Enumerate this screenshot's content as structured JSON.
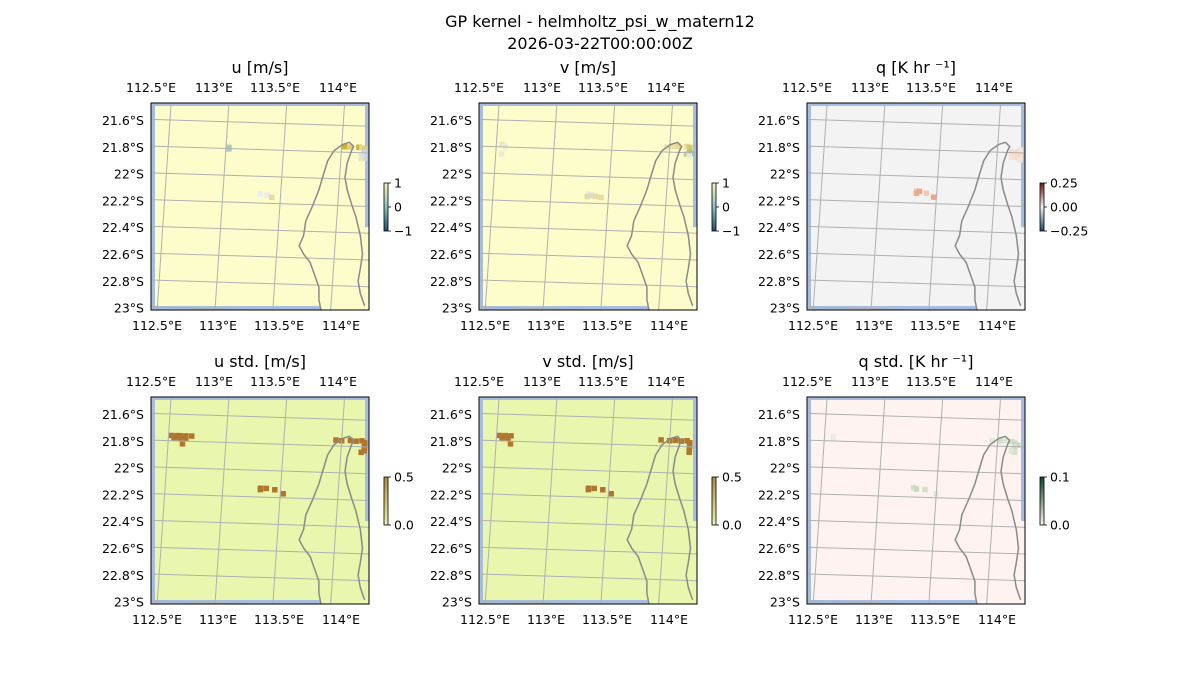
{
  "figure": {
    "title": "GP kernel - helmholtz_psi_w_matern12",
    "subtitle": "2026-03-22T00:00:00Z"
  },
  "colors": {
    "ocean": "#a7bde0",
    "coast": "#8a8a8a",
    "grid": "#b0b0b0"
  },
  "chart_data": [
    {
      "type": "heatmap",
      "title": "u [m/s]",
      "x_ticks": [
        "112.5°E",
        "113°E",
        "113.5°E",
        "114°E"
      ],
      "y_ticks": [
        "21.6°S",
        "21.8°S",
        "22°S",
        "22.2°S",
        "22.4°S",
        "22.6°S",
        "22.8°S",
        "23°S"
      ],
      "background": "#fdfccb",
      "grid": true,
      "colorbar": {
        "ticks": [
          "1",
          "0",
          "−1"
        ],
        "cmap": [
          "#fdf3b0",
          "#8dc5c3",
          "#1f4e68"
        ]
      },
      "cells": [
        [
          1.0,
          -0.85,
          "#bfcf9a"
        ],
        [
          1.0,
          -0.91,
          "#a9c8d3"
        ],
        [
          3.0,
          -0.69,
          "#cdb22b"
        ],
        [
          3.1,
          -0.7,
          "#ddd080"
        ],
        [
          3.25,
          -0.7,
          "#cdb22b"
        ],
        [
          3.3,
          -0.72,
          "#e7db9a"
        ],
        [
          3.35,
          -0.75,
          "#dccf80"
        ],
        [
          3.35,
          -0.88,
          "#c9d7e6"
        ],
        [
          3.35,
          -0.94,
          "#c6d8df"
        ],
        [
          3.3,
          -1.03,
          "#d7e3ec"
        ],
        [
          3.35,
          -1.07,
          "#d0dbe7"
        ],
        [
          3.35,
          -1.1,
          "#c7d9e0"
        ],
        [
          3.3,
          -1.12,
          "#eae3c0"
        ],
        [
          1.6,
          -2.55,
          "#ececec"
        ],
        [
          1.72,
          -2.6,
          "#ececec"
        ],
        [
          1.8,
          -2.67,
          "#eadca0"
        ]
      ]
    },
    {
      "type": "heatmap",
      "title": "v [m/s]",
      "x_ticks": [
        "112.5°E",
        "113°E",
        "113.5°E",
        "114°E"
      ],
      "y_ticks": [
        "21.6°S",
        "21.8°S",
        "22°S",
        "22.2°S",
        "22.4°S",
        "22.6°S",
        "22.8°S",
        "23°S"
      ],
      "background": "#fdfccb",
      "grid": true,
      "colorbar": {
        "ticks": [
          "1",
          "0",
          "−1"
        ],
        "cmap": [
          "#fdf3b0",
          "#8dc5c3",
          "#1f4e68"
        ]
      },
      "cells": [
        [
          0.05,
          -0.81,
          "#e8e4c0"
        ],
        [
          0.1,
          -0.86,
          "#ecebd4"
        ],
        [
          2.9,
          -0.71,
          "#ece3b4"
        ],
        [
          3.0,
          -0.68,
          "#eadca0"
        ],
        [
          3.1,
          -0.67,
          "#e8d78a"
        ],
        [
          3.25,
          -0.67,
          "#e5d898"
        ],
        [
          3.3,
          -0.7,
          "#d7c86e"
        ],
        [
          3.3,
          -0.84,
          "#d1c560"
        ],
        [
          3.3,
          -0.92,
          "#8dbf86"
        ],
        [
          3.35,
          -0.92,
          "#95c0bf"
        ],
        [
          3.25,
          -0.96,
          "#c7cf96"
        ],
        [
          3.3,
          -1.02,
          "#efecd0"
        ],
        [
          0.05,
          -1.16,
          "#ecebd4"
        ],
        [
          1.6,
          -2.55,
          "#ececec"
        ],
        [
          1.65,
          -2.61,
          "#d4dce6"
        ],
        [
          1.58,
          -2.66,
          "#e5dca8"
        ],
        [
          1.72,
          -2.64,
          "#eadca0"
        ],
        [
          1.82,
          -2.67,
          "#e5dca8"
        ]
      ]
    },
    {
      "type": "heatmap",
      "title": "q [K hr ⁻¹]",
      "x_ticks": [
        "112.5°E",
        "113°E",
        "113.5°E",
        "114°E"
      ],
      "y_ticks": [
        "21.6°S",
        "21.8°S",
        "22°S",
        "22.2°S",
        "22.4°S",
        "22.6°S",
        "22.8°S",
        "23°S"
      ],
      "background": "#f3f3f3",
      "grid": true,
      "colorbar": {
        "ticks": [
          "0.25",
          "0.00",
          "−0.25"
        ],
        "cmap": [
          "#7a1416",
          "#f4f4f4",
          "#1d4a6d"
        ]
      },
      "cells": [
        [
          3.2,
          -0.89,
          "#f3dbca"
        ],
        [
          3.3,
          -0.87,
          "#f6d9c4"
        ],
        [
          3.3,
          -0.96,
          "#f6d9c4"
        ],
        [
          3.35,
          -0.8,
          "#f7e2d4"
        ],
        [
          3.35,
          -0.96,
          "#f3dbca"
        ],
        [
          3.35,
          -1.01,
          "#f6d9c4"
        ],
        [
          3.3,
          -1.08,
          "#f3dbca"
        ],
        [
          3.2,
          -1.08,
          "#f7e2d4"
        ],
        [
          3.35,
          -1.16,
          "#f7e2d4"
        ],
        [
          1.6,
          -2.46,
          "#f2c8b6"
        ],
        [
          1.65,
          -2.46,
          "#eea987"
        ],
        [
          1.6,
          -2.53,
          "#eea987"
        ],
        [
          1.77,
          -2.52,
          "#f2c8b6"
        ],
        [
          1.9,
          -2.66,
          "#f0a389"
        ]
      ]
    },
    {
      "type": "heatmap",
      "title": "u std. [m/s]",
      "x_ticks": [
        "112.5°E",
        "113°E",
        "113.5°E",
        "114°E"
      ],
      "y_ticks": [
        "21.6°S",
        "21.8°S",
        "22°S",
        "22.2°S",
        "22.4°S",
        "22.6°S",
        "22.8°S",
        "23°S"
      ],
      "background": "#e8f6ae",
      "grid": true,
      "colorbar": {
        "ticks": [
          "0.5",
          "0.0"
        ],
        "cmap": [
          "#b58b3a",
          "#e8f6ae"
        ]
      },
      "cells": [
        [
          0.0,
          -0.7,
          "#b0762e"
        ],
        [
          0.1,
          -0.7,
          "#b0762e"
        ],
        [
          0.15,
          -0.7,
          "#b0762e"
        ],
        [
          0.25,
          -0.7,
          "#b0762e"
        ],
        [
          0.35,
          -0.7,
          "#b0762e"
        ],
        [
          0.05,
          -0.75,
          "#b0762e"
        ],
        [
          0.15,
          -0.75,
          "#b0762e"
        ],
        [
          0.25,
          -0.75,
          "#b0762e"
        ],
        [
          0.05,
          -0.8,
          "#b0762e"
        ],
        [
          0.15,
          -0.8,
          "#b0762e"
        ],
        [
          0.25,
          -0.8,
          "#b0762e"
        ],
        [
          0.2,
          -1.0,
          "#b0762e"
        ],
        [
          2.85,
          -0.68,
          "#b0762e"
        ],
        [
          2.95,
          -0.7,
          "#b0762e"
        ],
        [
          3.1,
          -0.68,
          "#b0762e"
        ],
        [
          3.2,
          -0.7,
          "#b0762e"
        ],
        [
          3.3,
          -0.68,
          "#b0762e"
        ],
        [
          3.35,
          -0.75,
          "#b0762e"
        ],
        [
          3.35,
          -0.84,
          "#b0762e"
        ],
        [
          3.35,
          -0.91,
          "#b0762e"
        ],
        [
          3.35,
          -0.98,
          "#b0762e"
        ],
        [
          3.35,
          -1.05,
          "#b0762e"
        ],
        [
          3.3,
          -1.11,
          "#b0762e"
        ],
        [
          1.6,
          -2.57,
          "#b0762e"
        ],
        [
          1.7,
          -2.57,
          "#b0762e"
        ],
        [
          1.6,
          -2.62,
          "#b0762e"
        ],
        [
          1.85,
          -2.61,
          "#b0762e"
        ],
        [
          2.0,
          -2.75,
          "#b0762e"
        ]
      ]
    },
    {
      "type": "heatmap",
      "title": "v std. [m/s]",
      "x_ticks": [
        "112.5°E",
        "113°E",
        "113.5°E",
        "114°E"
      ],
      "y_ticks": [
        "21.6°S",
        "21.8°S",
        "22°S",
        "22.2°S",
        "22.4°S",
        "22.6°S",
        "22.8°S",
        "23°S"
      ],
      "background": "#e8f6ae",
      "grid": true,
      "colorbar": {
        "ticks": [
          "0.5",
          "0.0"
        ],
        "cmap": [
          "#b58b3a",
          "#e8f6ae"
        ]
      },
      "cells": [
        [
          0.0,
          -0.7,
          "#b0762e"
        ],
        [
          0.1,
          -0.7,
          "#b0762e"
        ],
        [
          0.2,
          -0.7,
          "#b0762e"
        ],
        [
          0.05,
          -0.75,
          "#b0762e"
        ],
        [
          0.15,
          -0.75,
          "#b0762e"
        ],
        [
          0.05,
          -0.8,
          "#b0762e"
        ],
        [
          0.15,
          -0.8,
          "#b0762e"
        ],
        [
          0.2,
          -1.0,
          "#b0762e"
        ],
        [
          2.8,
          -0.68,
          "#b0762e"
        ],
        [
          2.95,
          -0.7,
          "#b0762e"
        ],
        [
          3.05,
          -0.68,
          "#b0762e"
        ],
        [
          3.15,
          -0.7,
          "#b0762e"
        ],
        [
          3.25,
          -0.68,
          "#b0762e"
        ],
        [
          3.3,
          -0.75,
          "#b0762e"
        ],
        [
          3.3,
          -0.84,
          "#b0762e"
        ],
        [
          3.3,
          -0.91,
          "#b0762e"
        ],
        [
          3.3,
          -0.98,
          "#b0762e"
        ],
        [
          3.3,
          -1.05,
          "#b0762e"
        ],
        [
          3.3,
          -1.11,
          "#b0762e"
        ],
        [
          1.6,
          -2.57,
          "#b0762e"
        ],
        [
          1.7,
          -2.57,
          "#b0762e"
        ],
        [
          1.6,
          -2.62,
          "#b0762e"
        ],
        [
          1.85,
          -2.61,
          "#b0762e"
        ],
        [
          2.0,
          -2.75,
          "#b0762e"
        ]
      ]
    },
    {
      "type": "heatmap",
      "title": "q std. [K hr ⁻¹]",
      "x_ticks": [
        "112.5°E",
        "113°E",
        "113.5°E",
        "114°E"
      ],
      "y_ticks": [
        "21.6°S",
        "21.8°S",
        "22°S",
        "22.2°S",
        "22.4°S",
        "22.6°S",
        "22.8°S",
        "23°S"
      ],
      "background": "#fef3f0",
      "grid": true,
      "colorbar": {
        "ticks": [
          "0.1",
          "0.0"
        ],
        "cmap": [
          "#0b4a2f",
          "#fef3f0"
        ]
      },
      "cells": [
        [
          0.1,
          -0.75,
          "#ecece0"
        ],
        [
          0.1,
          -0.8,
          "#ecece0"
        ],
        [
          2.85,
          -0.7,
          "#e4e8d8"
        ],
        [
          3.0,
          -0.7,
          "#d4e0c8"
        ],
        [
          3.1,
          -0.69,
          "#e0e6d4"
        ],
        [
          3.2,
          -0.72,
          "#d4e0c8"
        ],
        [
          3.25,
          -0.78,
          "#c8d8bc"
        ],
        [
          3.3,
          -0.84,
          "#c8d8bc"
        ],
        [
          3.25,
          -0.91,
          "#d4e0c8"
        ],
        [
          3.25,
          -0.98,
          "#d4e0c8"
        ],
        [
          3.25,
          -1.05,
          "#c8d8bc"
        ],
        [
          3.25,
          -1.11,
          "#d4e0c8"
        ],
        [
          3.2,
          -1.06,
          "#e0e6d4"
        ],
        [
          1.55,
          -2.55,
          "#d4e0c8"
        ],
        [
          1.6,
          -2.6,
          "#c8d8bc"
        ],
        [
          1.75,
          -2.61,
          "#d4e0c8"
        ],
        [
          1.95,
          -2.75,
          "#e4e8d8"
        ]
      ]
    }
  ]
}
